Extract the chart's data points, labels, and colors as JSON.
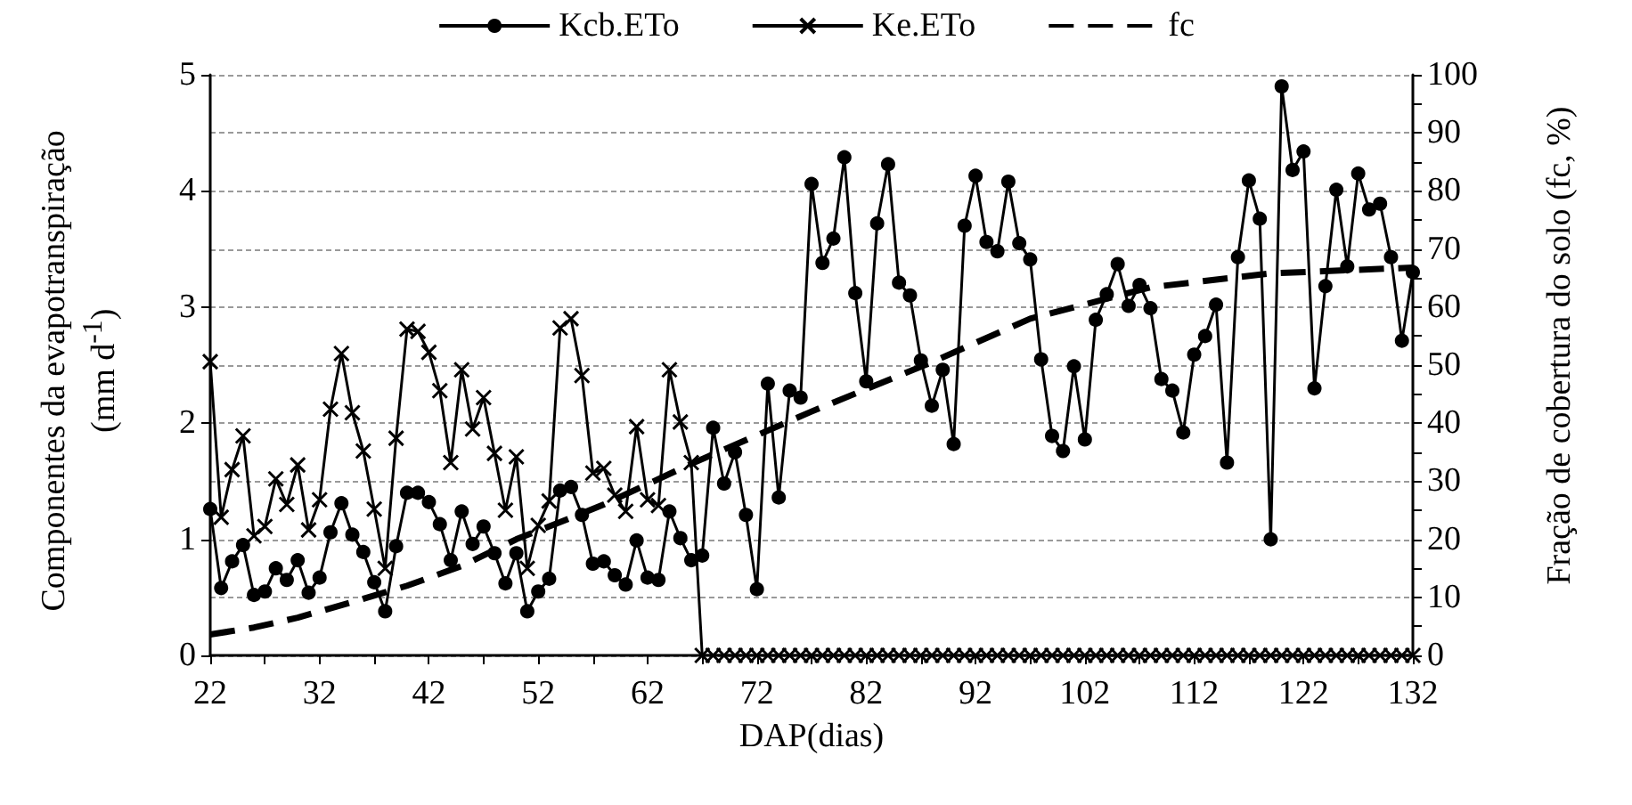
{
  "chart_data": {
    "type": "line",
    "xlabel": "DAP(dias)",
    "ylabel": "Componentes da evapotranspiração (mm d$^{-1}$)",
    "y2label": "Fração de cobertura do solo (fc, %)",
    "x": [
      22,
      23,
      24,
      25,
      26,
      27,
      28,
      29,
      30,
      31,
      32,
      33,
      34,
      35,
      36,
      37,
      38,
      39,
      40,
      41,
      42,
      43,
      44,
      45,
      46,
      47,
      48,
      49,
      50,
      51,
      52,
      53,
      54,
      55,
      56,
      57,
      58,
      59,
      60,
      61,
      62,
      63,
      64,
      65,
      66,
      67,
      68,
      69,
      70,
      71,
      72,
      73,
      74,
      75,
      76,
      77,
      78,
      79,
      80,
      81,
      82,
      83,
      84,
      85,
      86,
      87,
      88,
      89,
      90,
      91,
      92,
      93,
      94,
      95,
      96,
      97,
      98,
      99,
      100,
      101,
      102,
      103,
      104,
      105,
      106,
      107,
      108,
      109,
      110,
      111,
      112,
      113,
      114,
      115,
      116,
      117,
      118,
      119,
      120,
      121,
      122,
      123,
      124,
      125,
      126,
      127,
      128,
      129,
      130,
      131,
      132
    ],
    "series": [
      {
        "name": "Kcb.ETo",
        "color": "#000000",
        "marker": "circle",
        "line_style": "solid",
        "values": [
          1.26,
          0.58,
          0.81,
          0.95,
          0.52,
          0.55,
          0.75,
          0.65,
          0.82,
          0.54,
          0.67,
          1.06,
          1.31,
          1.04,
          0.89,
          0.63,
          0.38,
          0.94,
          1.4,
          1.4,
          1.32,
          1.13,
          0.82,
          1.24,
          0.96,
          1.11,
          0.88,
          0.62,
          0.88,
          0.38,
          0.55,
          0.66,
          1.42,
          1.45,
          1.21,
          0.79,
          0.81,
          0.69,
          0.61,
          0.99,
          0.67,
          0.65,
          1.24,
          1.01,
          0.82,
          0.86,
          1.96,
          1.48,
          1.75,
          1.21,
          0.57,
          2.34,
          1.36,
          2.28,
          2.22,
          4.06,
          3.38,
          3.59,
          4.29,
          3.12,
          2.36,
          3.72,
          4.23,
          3.21,
          3.1,
          2.54,
          2.15,
          2.46,
          1.82,
          3.7,
          4.13,
          3.56,
          3.48,
          4.08,
          3.55,
          3.41,
          2.55,
          1.89,
          1.76,
          2.49,
          1.86,
          2.89,
          3.11,
          3.37,
          3.01,
          3.19,
          2.99,
          2.38,
          2.28,
          1.92,
          2.59,
          2.75,
          3.02,
          1.66,
          3.43,
          4.09,
          3.76,
          1.0,
          4.9,
          4.18,
          4.34,
          2.3,
          3.18,
          4.01,
          3.35,
          4.15,
          3.84,
          3.89,
          3.43,
          2.71,
          3.3
        ]
      },
      {
        "name": "Ke.ETo",
        "color": "#000000",
        "marker": "cross",
        "line_style": "solid",
        "values": [
          2.53,
          1.19,
          1.6,
          1.89,
          1.03,
          1.11,
          1.52,
          1.3,
          1.64,
          1.08,
          1.34,
          2.12,
          2.6,
          2.09,
          1.76,
          1.26,
          0.75,
          1.87,
          2.81,
          2.79,
          2.61,
          2.28,
          1.66,
          2.46,
          1.95,
          2.22,
          1.74,
          1.25,
          1.71,
          0.75,
          1.12,
          1.33,
          2.82,
          2.9,
          2.41,
          1.57,
          1.61,
          1.38,
          1.24,
          1.97,
          1.34,
          1.29,
          2.46,
          2.01,
          1.66,
          0,
          0,
          0,
          0,
          0,
          0,
          0,
          0,
          0,
          0,
          0,
          0,
          0,
          0,
          0,
          0,
          0,
          0,
          0,
          0,
          0,
          0,
          0,
          0,
          0,
          0,
          0,
          0,
          0,
          0,
          0,
          0,
          0,
          0,
          0,
          0,
          0,
          0,
          0,
          0,
          0,
          0,
          0,
          0,
          0,
          0,
          0,
          0,
          0,
          0,
          0,
          0,
          0,
          0,
          0,
          0,
          0,
          0,
          0,
          0,
          0,
          0,
          0,
          0,
          0,
          0
        ]
      },
      {
        "name": "fc",
        "color": "#000000",
        "marker": "none",
        "line_style": "dashed",
        "axis": "y2",
        "x": [
          22,
          26,
          30,
          35,
          40,
          45,
          50,
          55,
          58,
          66,
          77,
          88,
          97,
          108,
          119,
          132
        ],
        "values": [
          3.6,
          4.8,
          6.5,
          9.2,
          12,
          15.4,
          20,
          23.7,
          26,
          33,
          42,
          50.5,
          58,
          63.4,
          65.8,
          66.8
        ]
      }
    ],
    "xlim": [
      22,
      132
    ],
    "xticks": [
      22,
      {
        "value": 27,
        "label": null
      },
      32,
      {
        "value": 37,
        "label": null
      },
      42,
      {
        "value": 47,
        "label": null
      },
      52,
      {
        "value": 57,
        "label": null
      },
      62,
      {
        "value": 67,
        "label": null
      },
      72,
      {
        "value": 77,
        "label": null
      },
      82,
      {
        "value": 87,
        "label": null
      },
      92,
      {
        "value": 97,
        "label": null
      },
      102,
      {
        "value": 107,
        "label": null
      },
      112,
      {
        "value": 117,
        "label": null
      },
      122,
      {
        "value": 127,
        "label": null
      },
      132
    ],
    "ylim": [
      0,
      5
    ],
    "yticks": [
      0,
      1,
      2,
      3,
      4,
      5
    ],
    "y2lim": [
      0,
      100
    ],
    "y2ticks": [
      0,
      {
        "value": 5,
        "label": null
      },
      10,
      {
        "value": 15,
        "label": null
      },
      20,
      {
        "value": 25,
        "label": null
      },
      30,
      {
        "value": 35,
        "label": null
      },
      40,
      {
        "value": 45,
        "label": null
      },
      50,
      {
        "value": 55,
        "label": null
      },
      60,
      {
        "value": 65,
        "label": null
      },
      70,
      {
        "value": 75,
        "label": null
      },
      80,
      {
        "value": 85,
        "label": null
      },
      90,
      {
        "value": 95,
        "label": null
      },
      100
    ],
    "grid": "y",
    "legend": "top"
  }
}
